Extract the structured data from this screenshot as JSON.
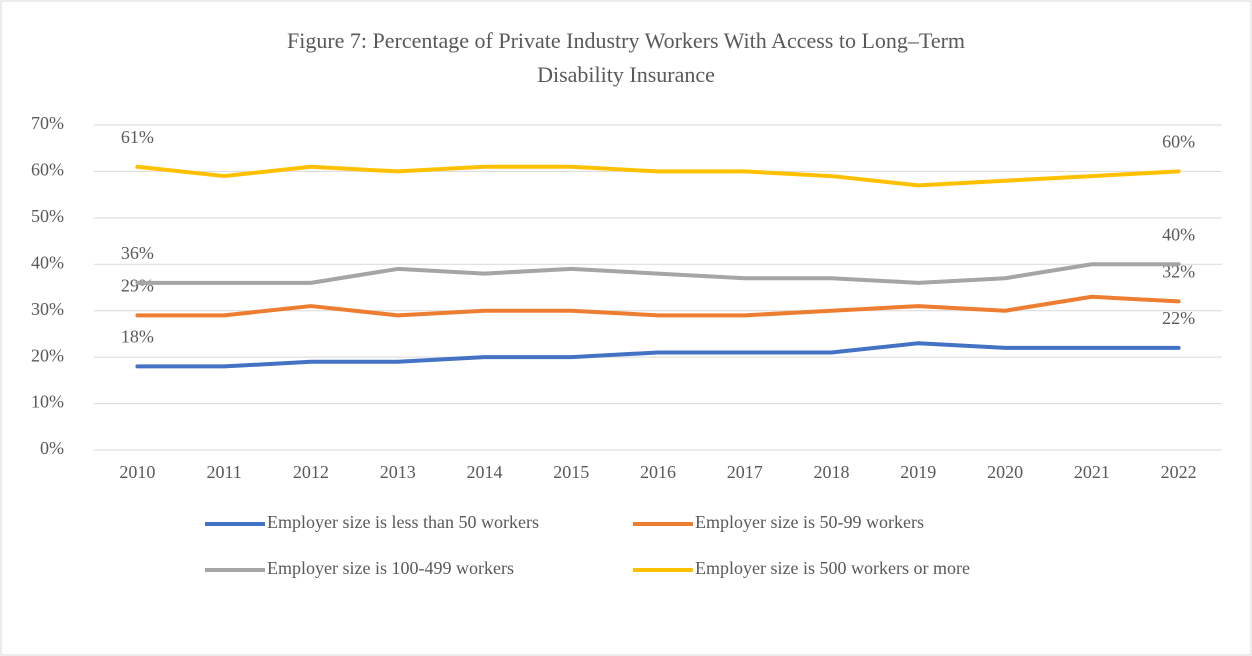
{
  "chart_data": {
    "type": "line",
    "title": "Figure 7: Percentage of Private Industry Workers With Access to Long–Term Disability Insurance",
    "categories": [
      "2010",
      "2011",
      "2012",
      "2013",
      "2014",
      "2015",
      "2016",
      "2017",
      "2018",
      "2019",
      "2020",
      "2021",
      "2022"
    ],
    "series": [
      {
        "name": "Employer size is less than 50 workers",
        "color": "#4472c4",
        "values": [
          18,
          18,
          19,
          19,
          20,
          20,
          21,
          21,
          21,
          23,
          22,
          22,
          22
        ],
        "value_labels": [
          "18%",
          null,
          null,
          null,
          null,
          null,
          null,
          null,
          null,
          null,
          null,
          null,
          "22%"
        ]
      },
      {
        "name": "Employer size is 50-99 workers",
        "color": "#ed7d31",
        "values": [
          29,
          29,
          31,
          29,
          30,
          30,
          29,
          29,
          30,
          31,
          30,
          33,
          32
        ],
        "value_labels": [
          "29%",
          null,
          null,
          null,
          null,
          null,
          null,
          null,
          null,
          null,
          null,
          null,
          "32%"
        ]
      },
      {
        "name": "Employer size is 100-499 workers",
        "color": "#a5a5a5",
        "values": [
          36,
          36,
          36,
          39,
          38,
          39,
          38,
          37,
          37,
          36,
          37,
          40,
          40
        ],
        "value_labels": [
          "36%",
          null,
          null,
          null,
          null,
          null,
          null,
          null,
          null,
          null,
          null,
          null,
          "40%"
        ]
      },
      {
        "name": "Employer size is 500 workers or more",
        "color": "#ffc000",
        "values": [
          61,
          59,
          61,
          60,
          61,
          61,
          60,
          60,
          59,
          57,
          58,
          59,
          60
        ],
        "value_labels": [
          "61%",
          null,
          null,
          null,
          null,
          null,
          null,
          null,
          null,
          null,
          null,
          null,
          "60%"
        ]
      }
    ],
    "ylim": [
      0,
      70
    ],
    "yticks": [
      {
        "value": 0,
        "label": "0%"
      },
      {
        "value": 10,
        "label": "10%"
      },
      {
        "value": 20,
        "label": "20%"
      },
      {
        "value": 30,
        "label": "30%"
      },
      {
        "value": 40,
        "label": "40%"
      },
      {
        "value": 50,
        "label": "50%"
      },
      {
        "value": 60,
        "label": "60%"
      },
      {
        "value": 70,
        "label": "70%"
      }
    ],
    "grid": true,
    "legend": "bottom"
  }
}
